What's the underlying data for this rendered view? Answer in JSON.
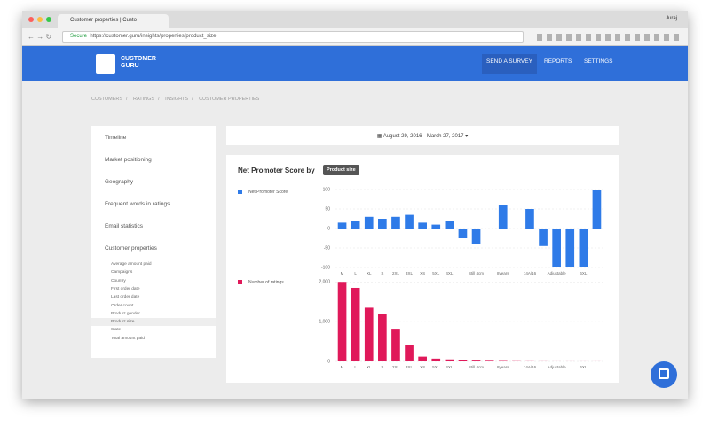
{
  "browser": {
    "tab_title": "Customer properties | Custo",
    "secure": "Secure",
    "url": "https://customer.guru/insights/properties/product_size",
    "user": "Juraj"
  },
  "header": {
    "logo": "CUSTOMER GURU",
    "nav": [
      "SEND A SURVEY",
      "REPORTS",
      "SETTINGS"
    ]
  },
  "breadcrumb": [
    "CUSTOMERS",
    "RATINGS",
    "INSIGHTS",
    "CUSTOMER PROPERTIES"
  ],
  "sidebar": {
    "items": [
      "Timeline",
      "Market positioning",
      "Geography",
      "Frequent words in ratings",
      "Email statistics",
      "Customer properties"
    ],
    "sub_items": [
      "Average amount paid",
      "Campaigns",
      "Country",
      "First order date",
      "Last order date",
      "Order count",
      "Product gender",
      "Product size",
      "State",
      "Total amount paid"
    ],
    "selected": 7
  },
  "date_range": "August 29, 2016 - March 27, 2017",
  "chart_title": "Net Promoter Score by",
  "chart_badge": "Product size",
  "chart_data": [
    {
      "type": "bar",
      "categories": [
        "M",
        "L",
        "XL",
        "S",
        "2XL",
        "3XL",
        "XS",
        "5XL",
        "4XL",
        null,
        "Still 4cm",
        null,
        "8years",
        null,
        "14A/16",
        null,
        "Adjustable",
        null,
        "6XL",
        null
      ],
      "series": [
        {
          "name": "Net Promoter Score",
          "color": "#2f7be8",
          "values": [
            15,
            20,
            30,
            25,
            30,
            35,
            15,
            10,
            20,
            -25,
            -40,
            0,
            60,
            0,
            50,
            -45,
            -100,
            -100,
            -100,
            100
          ]
        }
      ],
      "ylim": [
        -100,
        100
      ],
      "yticks": [
        -100,
        -50,
        0,
        50,
        100
      ],
      "grid": true
    },
    {
      "type": "bar",
      "categories": [
        "M",
        "L",
        "XL",
        "S",
        "2XL",
        "3XL",
        "XS",
        "5XL",
        "4XL",
        null,
        "Still 4cm",
        null,
        "8years",
        null,
        "14A/16",
        null,
        "Adjustable",
        null,
        "6XL",
        null
      ],
      "series": [
        {
          "name": "Number of ratings",
          "color": "#e0195a",
          "values": [
            2000,
            1850,
            1350,
            1200,
            800,
            420,
            120,
            70,
            50,
            30,
            20,
            15,
            10,
            5,
            3,
            2,
            1,
            1,
            1,
            1
          ]
        }
      ],
      "ylim": [
        0,
        2050
      ],
      "yticks": [
        0,
        {
          "value": 1000,
          "label": "1,000"
        },
        {
          "value": 2000,
          "label": "2,000"
        }
      ],
      "grid": true
    }
  ]
}
